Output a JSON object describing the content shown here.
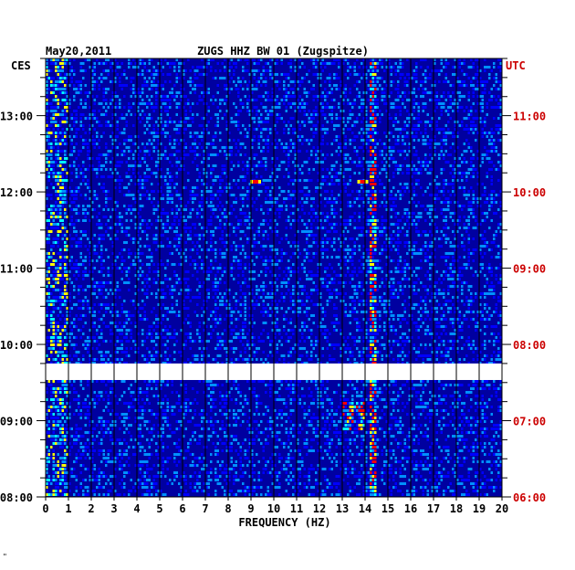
{
  "header": {
    "date": "May20,2011",
    "station": "ZUGS HHZ BW 01 (Zugspitze)",
    "left_timezone": "CES",
    "right_timezone": "UTC"
  },
  "footer": {
    "corner_mark": "\""
  },
  "colors": {
    "background": "#0000a0",
    "right_axis_text": "#cc0000",
    "gap": "#ffffff",
    "scale": [
      "#000080",
      "#0000ff",
      "#0090ff",
      "#00ffff",
      "#ffff00",
      "#ff0000"
    ]
  },
  "chart_data": {
    "type": "heatmap",
    "title": "ZUGS HHZ BW 01 (Zugspitze)",
    "xlabel": "FREQUENCY (HZ)",
    "xlim": [
      0,
      20
    ],
    "x_ticks": [
      "0",
      "1",
      "2",
      "3",
      "4",
      "5",
      "6",
      "7",
      "8",
      "9",
      "10",
      "11",
      "12",
      "13",
      "14",
      "15",
      "16",
      "17",
      "18",
      "19",
      "20"
    ],
    "left_axis": {
      "timezone": "CES",
      "ticks": [
        "08:00",
        "09:00",
        "10:00",
        "11:00",
        "12:00",
        "13:00"
      ]
    },
    "right_axis": {
      "timezone": "UTC",
      "ticks": [
        "06:00",
        "07:00",
        "08:00",
        "09:00",
        "10:00",
        "11:00"
      ]
    },
    "time_range_ces": [
      "08:00",
      "13:45"
    ],
    "data_gap_ces": [
      "09:32",
      "09:45"
    ],
    "grid": true,
    "dominant_features": [
      {
        "frequency_hz": 14.3,
        "description": "persistent narrow-band signal"
      },
      {
        "frequency_hz": 13.5,
        "description": "intermittent strong energy near 09:00-09:10"
      },
      {
        "frequency_hz": 9.2,
        "time_ces": "12:08",
        "description": "red spot"
      },
      {
        "frequency_hz": 13.9,
        "time_ces": "12:08",
        "description": "red spot"
      }
    ]
  }
}
